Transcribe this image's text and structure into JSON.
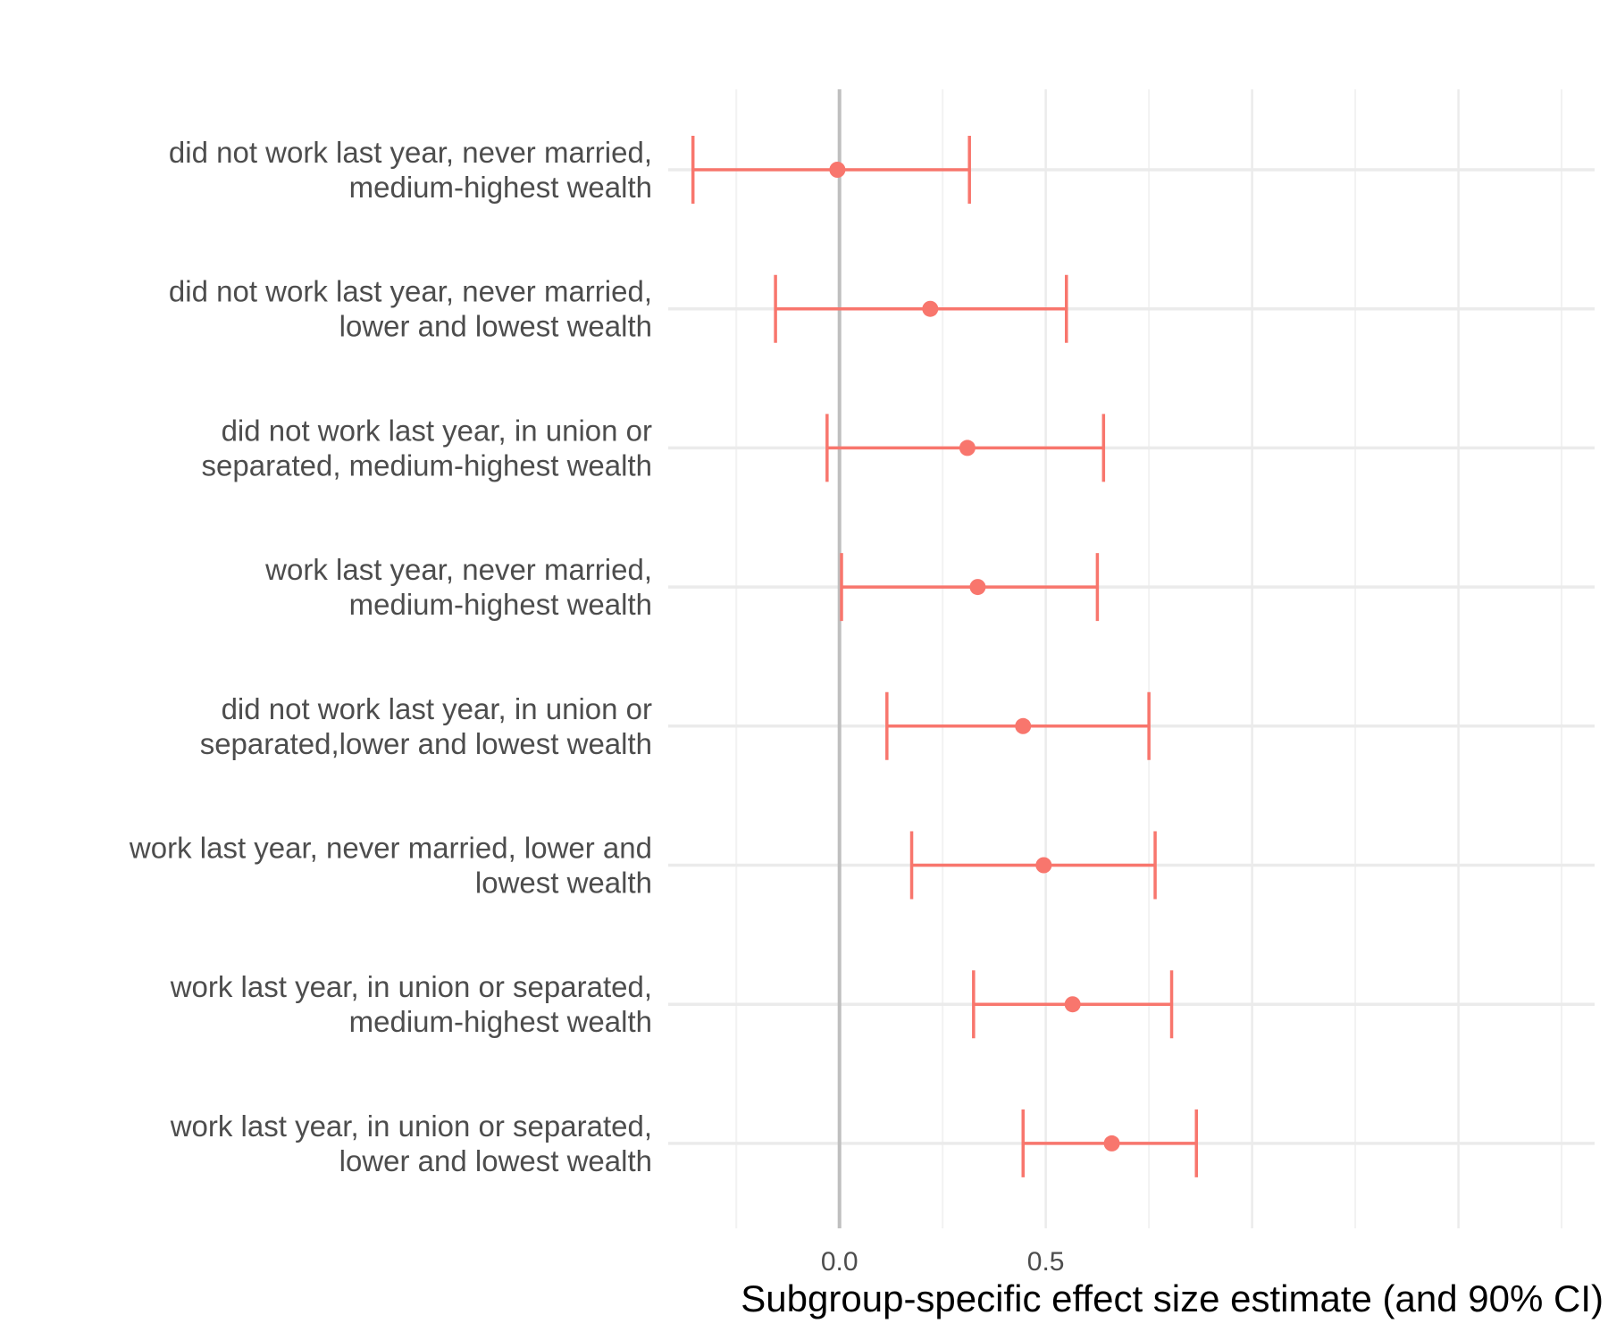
{
  "chart_data": {
    "type": "forest",
    "xlabel": "Subgroup-specific effect size estimate (and 90% CI)",
    "ylabel": "",
    "xlim": [
      -0.415,
      1.83
    ],
    "x_ticks": [
      0.0,
      0.5
    ],
    "x_tick_labels": [
      "0.0",
      "0.5"
    ],
    "reference_line": 0.0,
    "grid": true,
    "colors": {
      "series": "#f8766d",
      "major_grid": "#ebebeb",
      "minor_grid": "#f2f2f2",
      "reference": "#bfbfbf"
    },
    "series": [
      {
        "label": [
          "did not work last year, never married,",
          "medium-highest wealth"
        ],
        "estimate": -0.005,
        "lower": -0.355,
        "upper": 0.315
      },
      {
        "label": [
          "did not work last year, never married,",
          "lower and lowest wealth"
        ],
        "estimate": 0.22,
        "lower": -0.155,
        "upper": 0.55
      },
      {
        "label": [
          "did not work last year, in union or",
          "separated, medium-highest wealth"
        ],
        "estimate": 0.31,
        "lower": -0.03,
        "upper": 0.64
      },
      {
        "label": [
          "work last year, never married,",
          "medium-highest wealth"
        ],
        "estimate": 0.335,
        "lower": 0.005,
        "upper": 0.625
      },
      {
        "label": [
          "did not work last year, in union or",
          "separated,lower and lowest wealth"
        ],
        "estimate": 0.445,
        "lower": 0.115,
        "upper": 0.75
      },
      {
        "label": [
          "work last year, never married, lower and",
          "lowest wealth"
        ],
        "estimate": 0.495,
        "lower": 0.175,
        "upper": 0.765
      },
      {
        "label": [
          "work last year, in union or separated,",
          "medium-highest wealth"
        ],
        "estimate": 0.565,
        "lower": 0.325,
        "upper": 0.805
      },
      {
        "label": [
          "work last year, in union or separated,",
          "lower and lowest wealth"
        ],
        "estimate": 0.66,
        "lower": 0.445,
        "upper": 0.865
      }
    ]
  }
}
